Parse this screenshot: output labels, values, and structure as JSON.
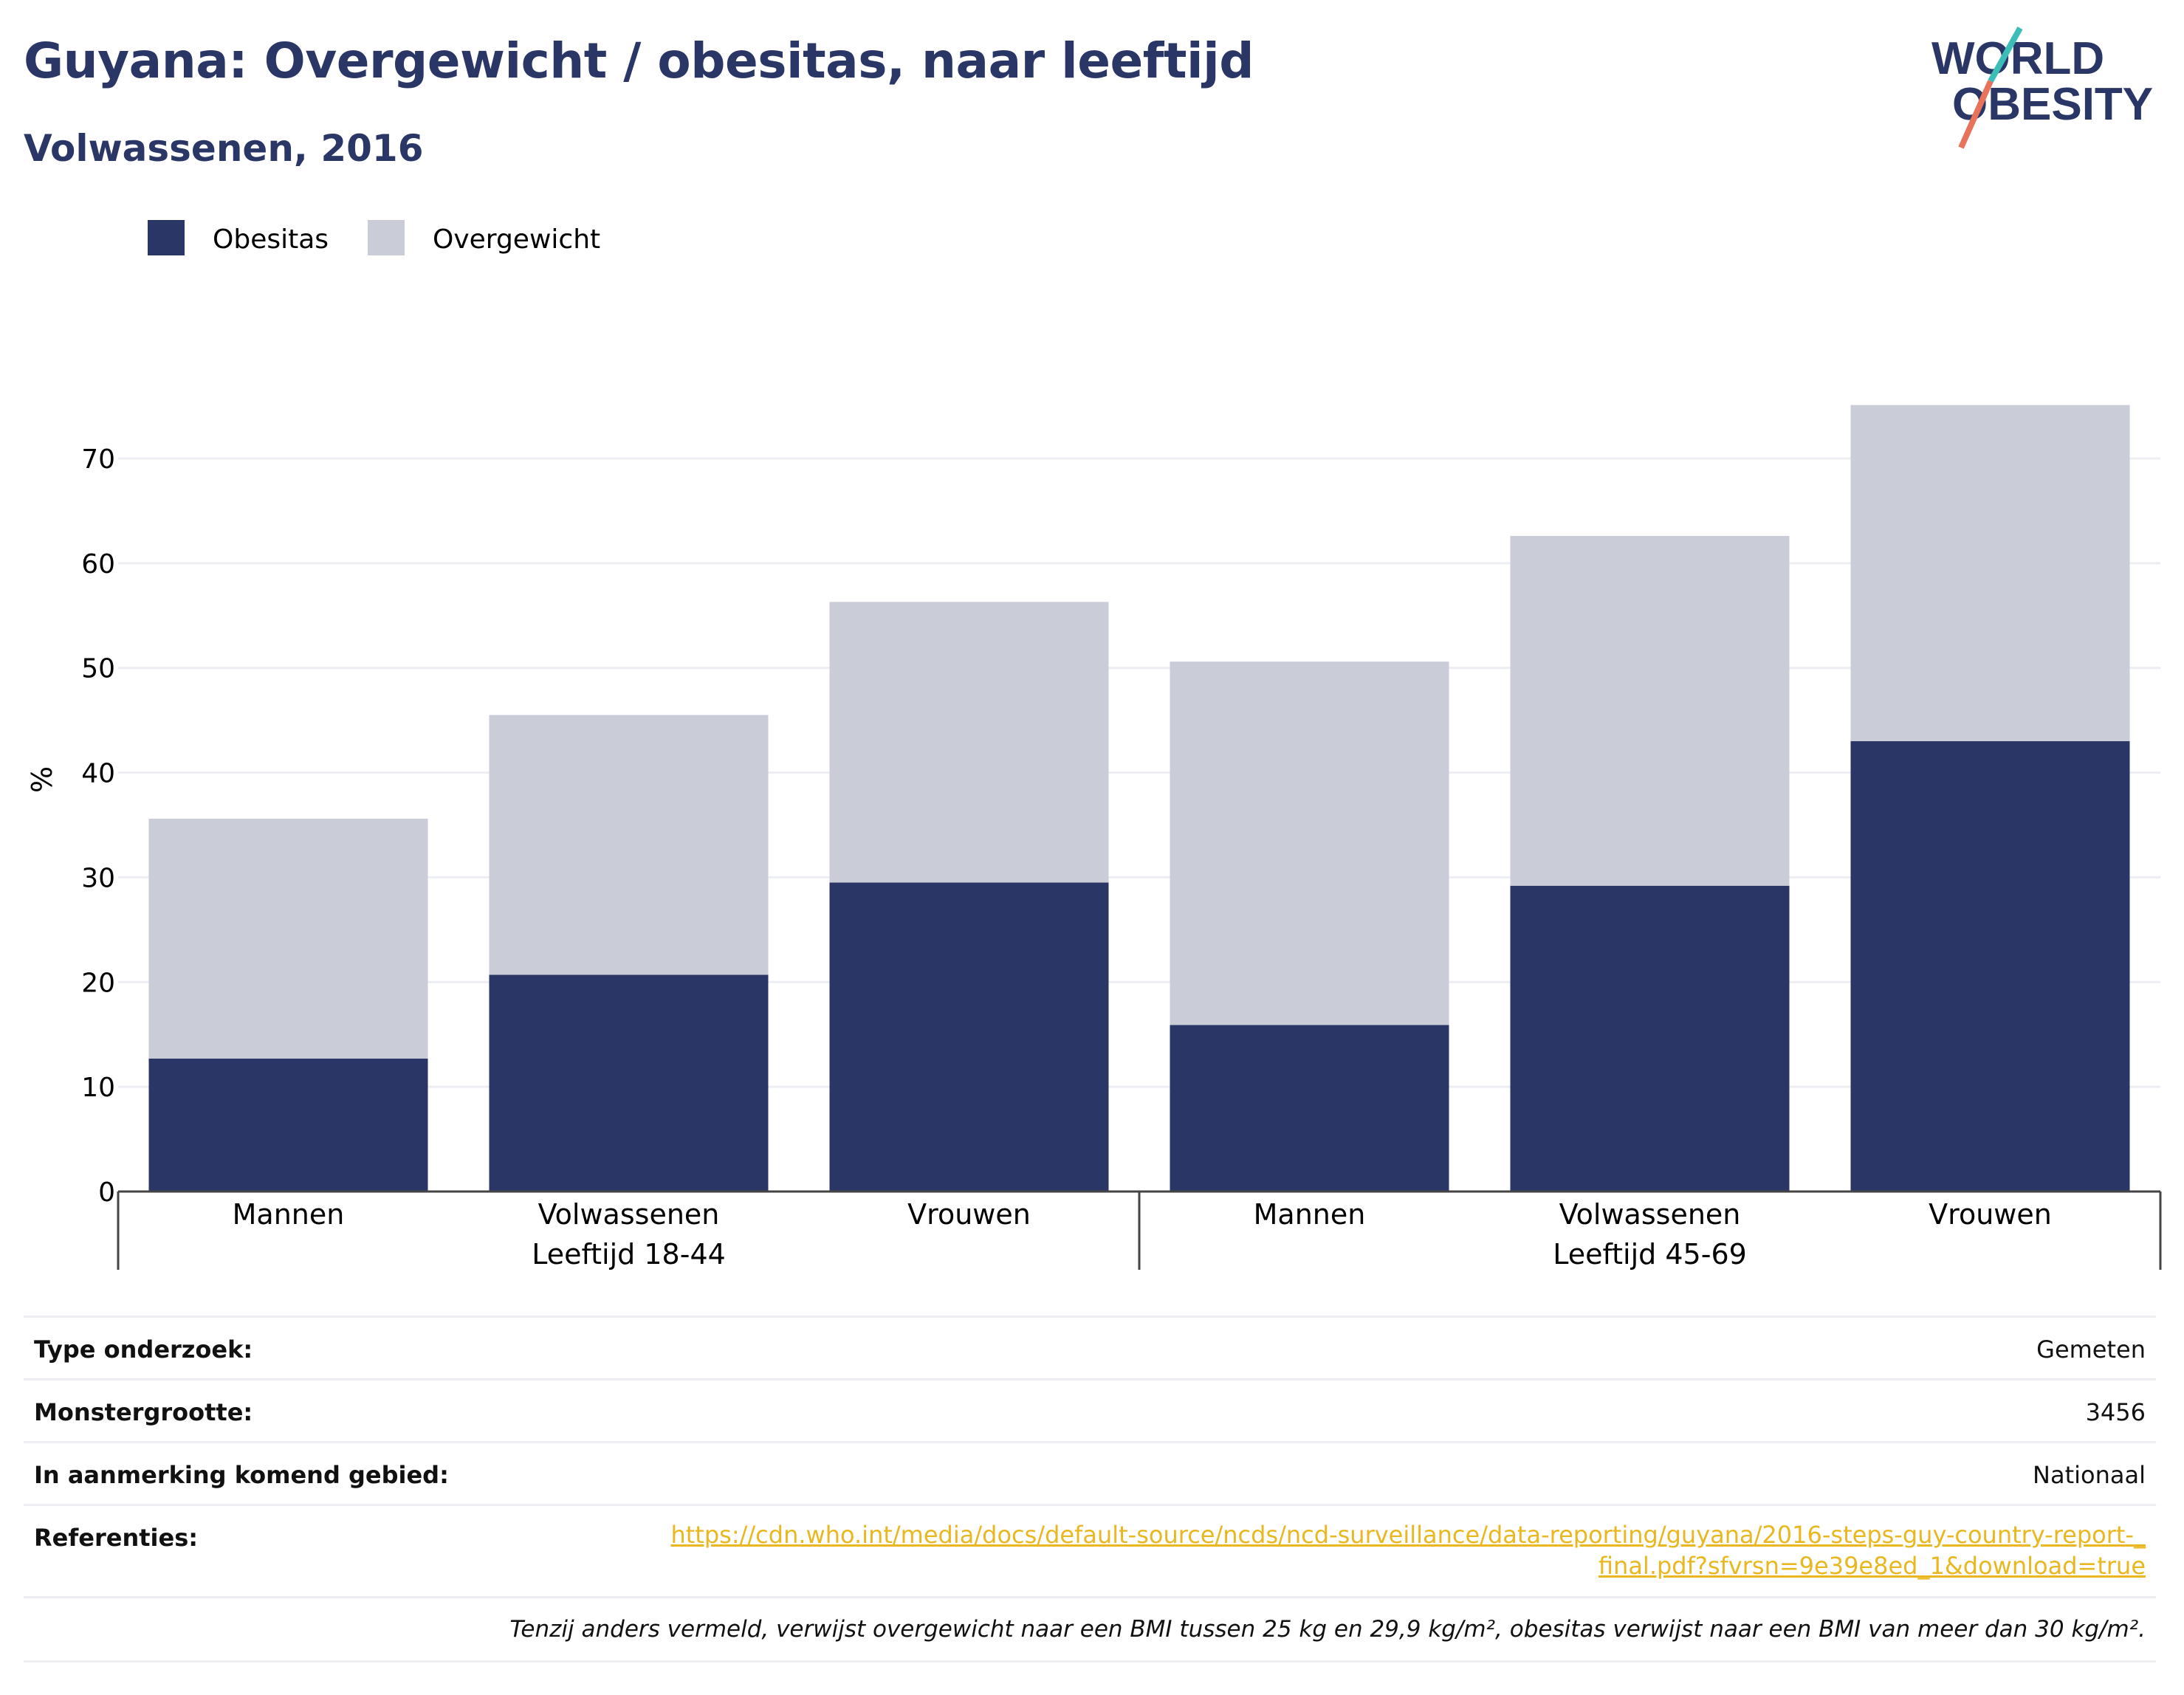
{
  "title": "Guyana: Overgewicht / obesitas, naar leeftijd",
  "subtitle": "Volwassenen, 2016",
  "logo": {
    "line1": "WORLD",
    "line2": "OBESITY"
  },
  "colors": {
    "obesitas": "#2a3766",
    "overgewicht": "#caccd8",
    "title": "#2a3766",
    "link": "#e9b71f",
    "logo_teal": "#3cbdb8",
    "logo_coral": "#e8735a"
  },
  "chart_data": {
    "type": "bar",
    "stacked": true,
    "ylabel": "%",
    "ylim": [
      0,
      75
    ],
    "yticks": [
      0,
      10,
      20,
      30,
      40,
      50,
      60,
      70
    ],
    "grid": true,
    "legend_position": "top-left",
    "groups": [
      {
        "label": "Leeftijd 18-44",
        "categories": [
          "Mannen",
          "Volwassenen",
          "Vrouwen"
        ]
      },
      {
        "label": "Leeftijd 45-69",
        "categories": [
          "Mannen",
          "Volwassenen",
          "Vrouwen"
        ]
      }
    ],
    "categories": [
      "Mannen",
      "Volwassenen",
      "Vrouwen",
      "Mannen",
      "Volwassenen",
      "Vrouwen"
    ],
    "series": [
      {
        "name": "Obesitas",
        "values": [
          12.7,
          20.7,
          29.5,
          15.9,
          29.2,
          43.0
        ]
      },
      {
        "name": "Overgewicht",
        "values": [
          22.9,
          24.8,
          26.8,
          34.7,
          33.4,
          32.1
        ]
      }
    ]
  },
  "info": {
    "type_label": "Type onderzoek:",
    "type_value": "Gemeten",
    "sample_label": "Monstergrootte:",
    "sample_value": "3456",
    "area_label": "In aanmerking komend gebied:",
    "area_value": "Nationaal",
    "ref_label": "Referenties:",
    "ref_value": "https://cdn.who.int/media/docs/default-source/ncds/ncd-surveillance/data-reporting/guyana/2016-steps-guy-country-report-_final.pdf?sfvrsn=9e39e8ed_1&download=true",
    "footnote": "Tenzij anders vermeld, verwijst overgewicht naar een BMI tussen 25 kg en 29,9 kg/m², obesitas verwijst naar een BMI van meer dan 30 kg/m²."
  }
}
